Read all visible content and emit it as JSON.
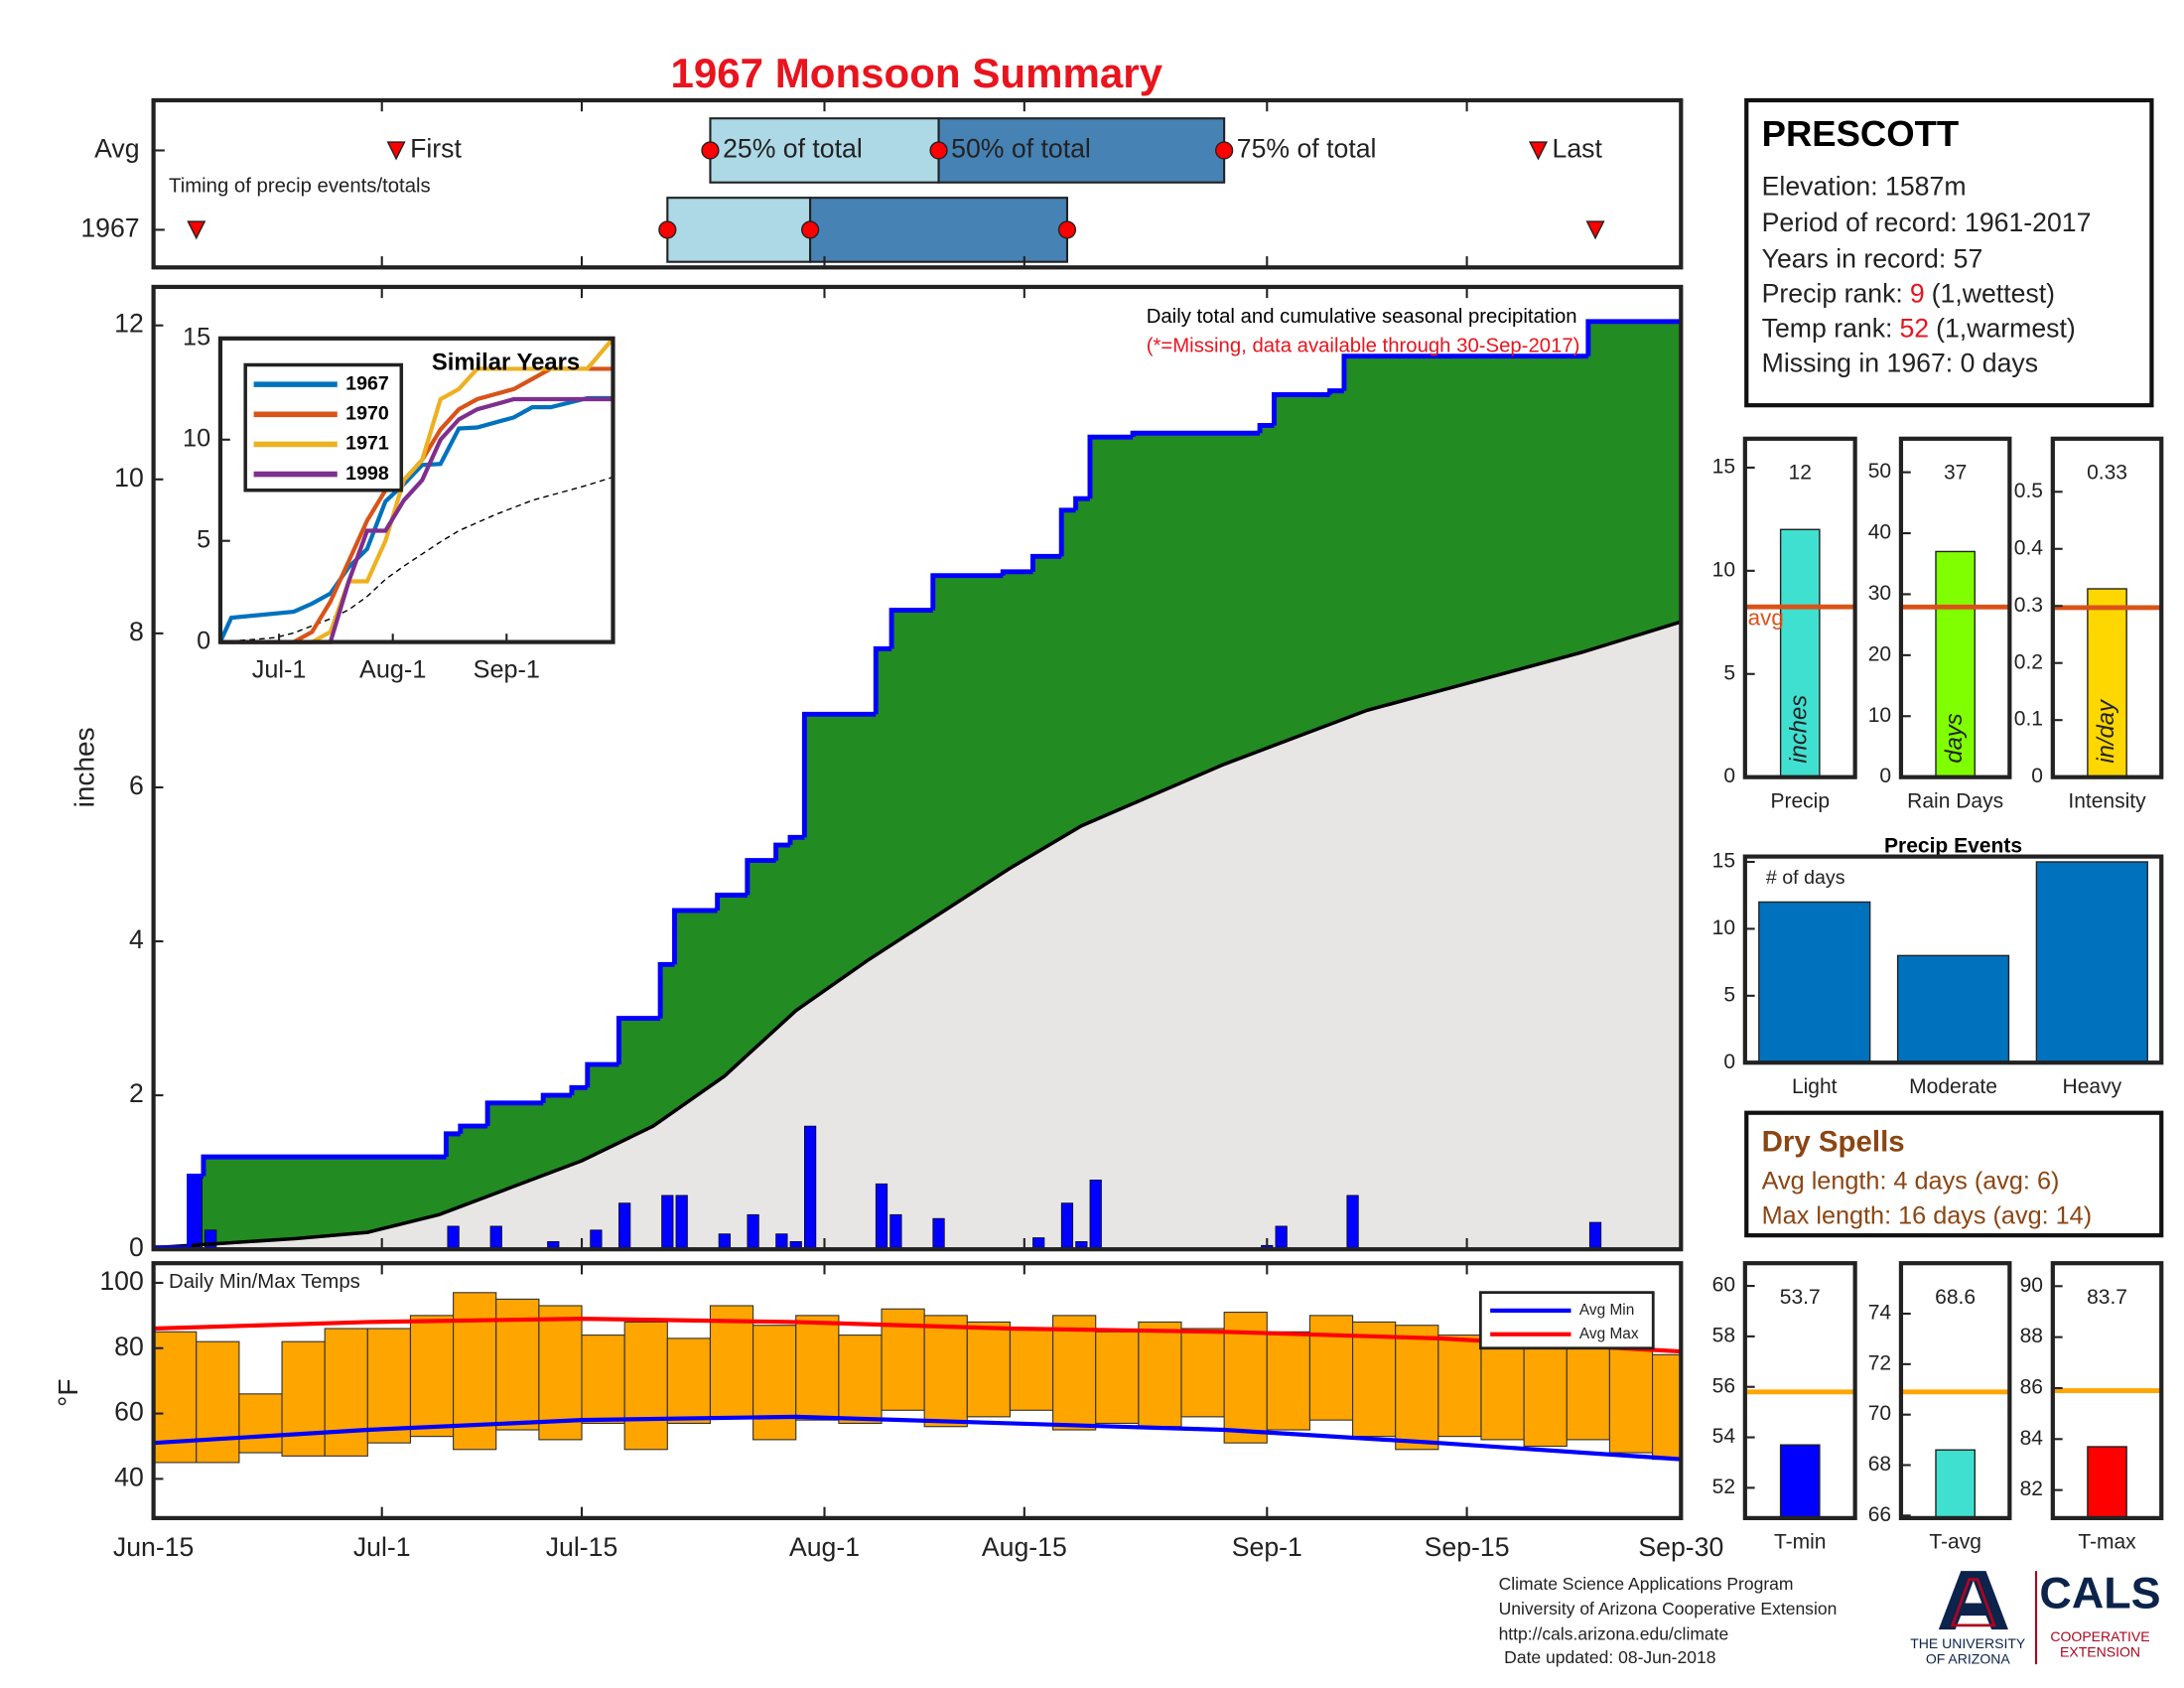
{
  "title": "1967 Monsoon Summary",
  "chart_data": [
    {
      "type": "timing",
      "rows": [
        "Avg",
        "1967"
      ],
      "first": [
        17,
        3
      ],
      "q25": [
        39,
        36
      ],
      "q50": [
        55,
        46
      ],
      "q75": [
        75,
        64
      ],
      "last": [
        97,
        101
      ],
      "labels": {
        "first": "First",
        "q25": "25% of total",
        "q50": "50% of total",
        "q75": "75% of total",
        "last": "Last"
      },
      "annotation": "Timing of precip events/totals",
      "xlim": [
        0,
        107
      ],
      "colors": {
        "early": "#ADD8E6",
        "late": "#4682B4",
        "marker": "#FF0000"
      }
    },
    {
      "type": "precip",
      "ylabel": "inches",
      "annotation": "Daily total and cumulative seasonal precipitation",
      "note": "(*=Missing, data available through 30-Sep-2017)",
      "xlim": [
        0,
        107
      ],
      "ylim": [
        0,
        12.5
      ],
      "yticks": [
        0,
        2,
        4,
        6,
        8,
        10,
        12
      ],
      "daily": {
        "x": [
          3,
          4,
          21,
          24,
          28,
          31,
          33,
          36,
          37,
          40,
          42,
          44,
          45,
          46,
          51,
          52,
          55,
          62,
          64,
          65,
          66,
          78,
          79,
          84,
          101
        ],
        "values": [
          0.95,
          0.25,
          0.3,
          0.3,
          0.1,
          0.25,
          0.6,
          0.7,
          0.7,
          0.2,
          0.45,
          0.2,
          0.1,
          1.6,
          0.85,
          0.45,
          0.4,
          0.15,
          0.6,
          0.1,
          0.9,
          0.05,
          0.3,
          0.7,
          0.35
        ],
        "color": "#0000FF"
      },
      "cumulative": {
        "x": [
          0,
          2.5,
          3.5,
          20.5,
          21.5,
          23.4,
          27.3,
          29.3,
          30.4,
          32.6,
          35.5,
          36.5,
          39.5,
          41.6,
          43.6,
          44.6,
          45.6,
          50.6,
          51.7,
          54.6,
          59.5,
          61.6,
          63.6,
          64.6,
          65.6,
          68.6,
          77.5,
          78.5,
          82.4,
          83.4,
          100.5,
          107
        ],
        "values": [
          0.02,
          0.95,
          1.2,
          1.5,
          1.6,
          1.9,
          2.0,
          2.1,
          2.4,
          3.0,
          3.7,
          4.4,
          4.6,
          5.05,
          5.25,
          5.35,
          6.95,
          7.8,
          8.3,
          8.75,
          8.8,
          9.0,
          9.6,
          9.75,
          10.55,
          10.6,
          10.7,
          11.1,
          11.15,
          11.6,
          12.05,
          12.05
        ],
        "color": "#0000FF",
        "fill": "#228B22"
      },
      "average": {
        "x": [
          0,
          5,
          10,
          15,
          20,
          25,
          30,
          35,
          40,
          45,
          50,
          55,
          60,
          65,
          70,
          75,
          80,
          85,
          90,
          95,
          100,
          107
        ],
        "values": [
          0.02,
          0.08,
          0.14,
          0.22,
          0.45,
          0.8,
          1.15,
          1.6,
          2.25,
          3.1,
          3.75,
          4.35,
          4.95,
          5.5,
          5.9,
          6.3,
          6.65,
          7.0,
          7.25,
          7.5,
          7.75,
          8.15
        ],
        "color": "#000000",
        "fill": "#E8E6E5"
      }
    },
    {
      "type": "temperature",
      "annotation": "Daily Min/Max Temps",
      "ylabel": "°F",
      "xlim": [
        0,
        107
      ],
      "ylim": [
        28,
        106
      ],
      "yticks": [
        40,
        60,
        80,
        100
      ],
      "xticks": [
        {
          "value": 0,
          "label": "Jun-15"
        },
        {
          "value": 16,
          "label": "Jul-1"
        },
        {
          "value": 30,
          "label": "Jul-15"
        },
        {
          "value": 47,
          "label": "Aug-1"
        },
        {
          "value": 61,
          "label": "Aug-15"
        },
        {
          "value": 78,
          "label": "Sep-1"
        },
        {
          "value": 92,
          "label": "Sep-15"
        },
        {
          "value": 107,
          "label": "Sep-30"
        }
      ],
      "x": [
        0,
        3,
        6,
        9,
        12,
        15,
        18,
        21,
        24,
        27,
        30,
        33,
        36,
        39,
        42,
        45,
        48,
        51,
        54,
        57,
        60,
        63,
        66,
        69,
        72,
        75,
        78,
        81,
        84,
        87,
        90,
        93,
        96,
        99,
        102,
        105
      ],
      "min": [
        45,
        45,
        48,
        47,
        47,
        51,
        53,
        49,
        55,
        52,
        57,
        49,
        57,
        59,
        52,
        58,
        57,
        61,
        56,
        59,
        61,
        55,
        57,
        56,
        59,
        51,
        55,
        58,
        53,
        49,
        53,
        52,
        50,
        52,
        48,
        46
      ],
      "max": [
        85,
        82,
        66,
        82,
        86,
        86,
        90,
        97,
        95,
        93,
        84,
        88,
        83,
        93,
        87,
        90,
        84,
        92,
        90,
        88,
        86,
        90,
        85,
        88,
        86,
        91,
        85,
        90,
        88,
        87,
        84,
        82,
        80,
        82,
        80,
        78
      ],
      "color": "#FFA500",
      "series": [
        {
          "name": "Avg Min",
          "color": "#0000FF",
          "x": [
            0,
            15,
            30,
            45,
            60,
            75,
            90,
            107
          ],
          "values": [
            51,
            55,
            58,
            59,
            57,
            55,
            51,
            46
          ]
        },
        {
          "name": "Avg Max",
          "color": "#FF0000",
          "x": [
            0,
            15,
            30,
            45,
            60,
            75,
            90,
            107
          ],
          "values": [
            86,
            88,
            89,
            88,
            86,
            85,
            83,
            79
          ]
        }
      ]
    },
    {
      "type": "line",
      "title": "Similar Years",
      "xlim": [
        0,
        107
      ],
      "ylim": [
        0,
        15
      ],
      "yticks": [
        0,
        5,
        10,
        15
      ],
      "xticks": [
        {
          "value": 16,
          "label": "Jul-1"
        },
        {
          "value": 47,
          "label": "Aug-1"
        },
        {
          "value": 78,
          "label": "Sep-1"
        }
      ],
      "x": [
        0,
        3,
        20,
        25,
        30,
        35,
        40,
        45,
        50,
        55,
        60,
        65,
        70,
        80,
        85,
        90,
        100,
        107
      ],
      "series": [
        {
          "name": "1967",
          "color": "#0072BD",
          "values": [
            0.02,
            1.2,
            1.5,
            1.9,
            2.4,
            3.7,
            4.6,
            6.95,
            7.8,
            8.75,
            8.8,
            10.55,
            10.6,
            11.1,
            11.6,
            11.6,
            12.05,
            12.05
          ]
        },
        {
          "name": "1970",
          "color": "#D95319",
          "values": [
            0,
            0,
            0,
            0.5,
            2,
            4,
            6,
            7.5,
            8,
            9,
            10.5,
            11.5,
            12,
            12.5,
            13,
            13.5,
            13.5,
            13.5
          ]
        },
        {
          "name": "1971",
          "color": "#EDB120",
          "values": [
            0,
            0,
            0,
            0,
            0.5,
            3,
            3,
            5,
            8,
            9,
            12,
            12.5,
            13.5,
            13.5,
            13.5,
            13.5,
            13.5,
            15
          ]
        },
        {
          "name": "1998",
          "color": "#7E2F8E",
          "values": [
            0,
            0,
            0,
            0,
            0,
            3,
            5.5,
            5.5,
            7,
            8,
            10,
            11,
            11.5,
            12,
            12,
            12,
            12,
            12
          ]
        }
      ],
      "average": {
        "x": [
          0,
          5,
          10,
          15,
          20,
          25,
          30,
          35,
          40,
          45,
          50,
          55,
          60,
          65,
          70,
          75,
          80,
          85,
          90,
          95,
          100,
          107
        ],
        "values": [
          0.02,
          0.08,
          0.14,
          0.22,
          0.45,
          0.8,
          1.15,
          1.6,
          2.25,
          3.1,
          3.75,
          4.35,
          4.95,
          5.5,
          5.9,
          6.3,
          6.65,
          7.0,
          7.25,
          7.5,
          7.75,
          8.15
        ],
        "color": "#000000",
        "linestyle": "dashed"
      }
    },
    {
      "type": "bar",
      "categories": [
        "Precip"
      ],
      "values": [
        12
      ],
      "color": "#40E0D0",
      "ylim": [
        0,
        16.4
      ],
      "yticks": [
        0,
        5,
        10,
        15
      ],
      "avg": 8.25,
      "avg_color": "#D95319",
      "avg_label": "avg",
      "unit": "inches"
    },
    {
      "type": "bar",
      "categories": [
        "Rain Days"
      ],
      "values": [
        37
      ],
      "color": "#80FF00",
      "ylim": [
        0,
        55.5
      ],
      "yticks": [
        0,
        10,
        20,
        30,
        40,
        50
      ],
      "avg": 27.9,
      "avg_color": "#D95319",
      "unit": "days"
    },
    {
      "type": "bar",
      "categories": [
        "Intensity"
      ],
      "values": [
        0.33
      ],
      "color": "#FFD700",
      "ylim": [
        0,
        0.593
      ],
      "yticks": [
        0,
        0.1,
        0.2,
        0.3,
        0.4,
        0.5
      ],
      "avg": 0.297,
      "avg_color": "#D95319",
      "unit": "in/day"
    },
    {
      "type": "bar",
      "title": "Precip Events",
      "ylabel": "# of days",
      "categories": [
        "Light",
        "Moderate",
        "Heavy"
      ],
      "values": [
        12,
        8,
        15
      ],
      "color": "#0072BD",
      "ylim": [
        0,
        15.4
      ],
      "yticks": [
        0,
        5,
        10,
        15
      ]
    },
    {
      "type": "bar",
      "categories": [
        "T-min"
      ],
      "values": [
        53.7
      ],
      "color": "#0000FF",
      "ylim": [
        50.8,
        60.9
      ],
      "yticks": [
        52,
        54,
        56,
        58,
        60
      ],
      "avg": 55.8,
      "avg_color": "#FFA500"
    },
    {
      "type": "bar",
      "categories": [
        "T-avg"
      ],
      "values": [
        68.6
      ],
      "color": "#40E0D0",
      "ylim": [
        65.9,
        76
      ],
      "yticks": [
        66,
        68,
        70,
        72,
        74
      ],
      "avg": 70.9,
      "avg_color": "#FFA500"
    },
    {
      "type": "bar",
      "categories": [
        "T-max"
      ],
      "values": [
        83.7
      ],
      "color": "#FF0000",
      "ylim": [
        80.9,
        90.9
      ],
      "yticks": [
        82,
        84,
        86,
        88,
        90
      ],
      "avg": 85.9,
      "avg_color": "#FFA500"
    }
  ],
  "station": {
    "name": "PRESCOTT",
    "elevation": "Elevation: 1587m",
    "period": "Period of record: 1961-2017",
    "years": "Years in record: 57",
    "precip_rank_label": "Precip rank:",
    "precip_rank": 9,
    "precip_rank_note": "(1,wettest)",
    "temp_rank_label": "Temp rank:",
    "temp_rank": 52,
    "temp_rank_note": "(1,warmest)",
    "missing": "Missing in 1967: 0 days"
  },
  "dry_spells": {
    "title": "Dry Spells",
    "avg_length": "Avg length: 4 days (avg: 6)",
    "max_length": "Max length: 16 days (avg: 14)"
  },
  "footer": [
    "Climate Science Applications Program",
    "University of Arizona Cooperative Extension",
    "http://cals.arizona.edu/climate",
    "Date updated: 08-Jun-2018"
  ],
  "logos": {
    "ua": [
      "THE UNIVERSITY",
      "OF ARIZONA"
    ],
    "cals": "CALS",
    "extension": [
      "COOPERATIVE",
      "EXTENSION"
    ]
  }
}
